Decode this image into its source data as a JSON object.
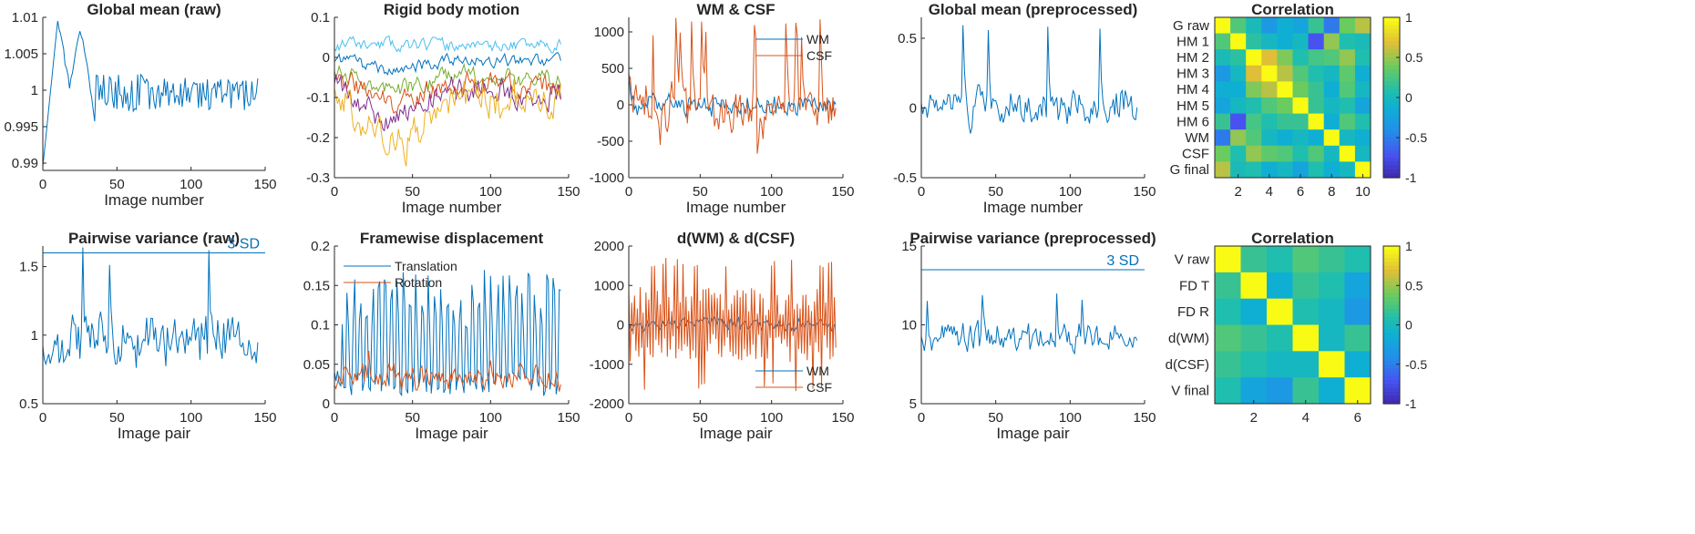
{
  "figure_title": "",
  "colors": {
    "blue": "#0072BD",
    "orange": "#D95319",
    "yellow": "#EDB120",
    "purple": "#7E2F8E",
    "green": "#77AC30",
    "cyan": "#4DBEEE",
    "axis": "#262626"
  },
  "chart_data": [
    {
      "id": "p1",
      "type": "line",
      "title": "Global mean (raw)",
      "xlabel": "Image number",
      "xlim": [
        0,
        150
      ],
      "ylim": [
        0.989,
        1.01
      ],
      "xticks": [
        0,
        50,
        100,
        150
      ],
      "xtick_labels": [
        "0",
        "50",
        "100",
        "150"
      ],
      "yticks": [
        0.99,
        0.995,
        1,
        1.005,
        1.01
      ],
      "ytick_labels": [
        "0.99",
        "0.995",
        "1",
        "1.005",
        "1.01"
      ],
      "series": [
        {
          "name": "G raw",
          "color": "blue",
          "gen": {
            "kind": "gmraw"
          }
        }
      ]
    },
    {
      "id": "p2",
      "type": "line",
      "title": "Rigid body motion",
      "xlabel": "Image number",
      "xlim": [
        0,
        150
      ],
      "ylim": [
        -0.3,
        0.1
      ],
      "xticks": [
        0,
        50,
        100,
        150
      ],
      "xtick_labels": [
        "0",
        "50",
        "100",
        "150"
      ],
      "yticks": [
        -0.3,
        -0.2,
        -0.1,
        0,
        0.1
      ],
      "ytick_labels": [
        "-0.3",
        "-0.2",
        "-0.1",
        "0",
        "0.1"
      ],
      "series": [
        {
          "name": "HM 1",
          "color": "cyan",
          "gen": {
            "kind": "drift",
            "seed": 11,
            "start": 0.03,
            "end": 0.03,
            "dip": 0.0,
            "amp": 0.012
          }
        },
        {
          "name": "HM 2",
          "color": "blue",
          "gen": {
            "kind": "drift",
            "seed": 12,
            "start": 0.0,
            "end": -0.01,
            "dip": -0.03,
            "amp": 0.012
          }
        },
        {
          "name": "HM 3",
          "color": "green",
          "gen": {
            "kind": "drift",
            "seed": 13,
            "start": -0.02,
            "end": -0.06,
            "dip": -0.05,
            "amp": 0.018
          }
        },
        {
          "name": "HM 4",
          "color": "orange",
          "gen": {
            "kind": "drift",
            "seed": 14,
            "start": -0.04,
            "end": -0.08,
            "dip": -0.06,
            "amp": 0.022
          }
        },
        {
          "name": "HM 5",
          "color": "purple",
          "gen": {
            "kind": "drift",
            "seed": 15,
            "start": -0.05,
            "end": -0.09,
            "dip": -0.1,
            "amp": 0.026
          }
        },
        {
          "name": "HM 6",
          "color": "yellow",
          "gen": {
            "kind": "drift",
            "seed": 16,
            "start": -0.06,
            "end": -0.12,
            "dip": -0.15,
            "amp": 0.038
          }
        }
      ]
    },
    {
      "id": "p3",
      "type": "line",
      "title": "WM & CSF",
      "xlabel": "Image number",
      "xlim": [
        0,
        150
      ],
      "ylim": [
        -1000,
        1200
      ],
      "xticks": [
        0,
        50,
        100,
        150
      ],
      "xtick_labels": [
        "0",
        "50",
        "100",
        "150"
      ],
      "yticks": [
        -1000,
        -500,
        0,
        500,
        1000
      ],
      "ytick_labels": [
        "-1000",
        "-500",
        "0",
        "500",
        "1000"
      ],
      "legend": {
        "position": "top-right",
        "entries": [
          "WM",
          "CSF"
        ]
      },
      "series": [
        {
          "name": "WM",
          "color": "blue",
          "gen": {
            "kind": "noise",
            "seed": 21,
            "mean": 0,
            "amp": 180,
            "spike": 0.0,
            "clipLo": -450,
            "clipHi": 450,
            "startval": 450
          }
        },
        {
          "name": "CSF",
          "color": "orange",
          "gen": {
            "kind": "noise",
            "seed": 22,
            "mean": -50,
            "amp": 420,
            "spike": 0.08,
            "spikeAmp": 1250,
            "clipLo": -700,
            "clipHi": 1250
          }
        }
      ]
    },
    {
      "id": "p4",
      "type": "line",
      "title": "Global mean (preprocessed)",
      "xlabel": "Image number",
      "xlim": [
        0,
        150
      ],
      "ylim": [
        -0.5,
        0.65
      ],
      "xticks": [
        0,
        50,
        100,
        150
      ],
      "xtick_labels": [
        "0",
        "50",
        "100",
        "150"
      ],
      "yticks": [
        -0.5,
        0,
        0.5
      ],
      "ytick_labels": [
        "-0.5",
        "0",
        "0.5"
      ],
      "series": [
        {
          "name": "G final",
          "color": "blue",
          "gen": {
            "kind": "noise",
            "seed": 31,
            "mean": 0,
            "amp": 0.16,
            "spike": 0.03,
            "spikeAmp": 0.6,
            "clipLo": -0.38,
            "clipHi": 0.62
          }
        }
      ]
    },
    {
      "id": "p5",
      "type": "heatmap",
      "title": "Correlation",
      "row_labels": [
        "G raw",
        "HM 1",
        "HM 2",
        "HM 3",
        "HM 4",
        "HM 5",
        "HM 6",
        "WM",
        "CSF",
        "G final"
      ],
      "xtick_values": [
        2,
        4,
        6,
        8,
        10
      ],
      "xtick_labels": [
        "2",
        "4",
        "6",
        "8",
        "10"
      ],
      "clim": [
        -1,
        1
      ],
      "colorbar_ticks": [
        1,
        0.5,
        0,
        -0.5,
        -1
      ],
      "colorbar_labels": [
        "1",
        "0.5",
        "0",
        "-0.5",
        "-1"
      ],
      "matrix": [
        [
          1,
          0.3,
          0.05,
          -0.3,
          -0.1,
          -0.2,
          0.2,
          -0.5,
          0.4,
          0.6
        ],
        [
          0.3,
          1,
          0.15,
          0.0,
          -0.1,
          0.0,
          -0.7,
          0.5,
          0.1,
          0.05
        ],
        [
          0.05,
          0.15,
          1,
          0.7,
          0.45,
          0.1,
          0.25,
          0.3,
          0.5,
          0.1
        ],
        [
          -0.3,
          0.0,
          0.7,
          1,
          0.6,
          0.3,
          0.1,
          0.0,
          0.35,
          -0.1
        ],
        [
          -0.1,
          -0.1,
          0.45,
          0.6,
          1,
          0.4,
          0.2,
          -0.1,
          0.3,
          0.0
        ],
        [
          -0.2,
          0.0,
          0.1,
          0.3,
          0.4,
          1,
          0.2,
          0.0,
          0.1,
          -0.2
        ],
        [
          0.2,
          -0.7,
          0.25,
          0.1,
          0.2,
          0.2,
          1,
          -0.1,
          0.3,
          0.1
        ],
        [
          -0.5,
          0.5,
          0.3,
          0.0,
          -0.1,
          0.0,
          -0.1,
          1,
          0.0,
          -0.1
        ],
        [
          0.4,
          0.1,
          0.5,
          0.35,
          0.3,
          0.1,
          0.3,
          0.0,
          1,
          0.0
        ],
        [
          0.6,
          0.05,
          0.1,
          -0.1,
          0.0,
          -0.2,
          0.1,
          -0.1,
          0.0,
          1
        ]
      ]
    },
    {
      "id": "p6",
      "type": "line",
      "title": "Pairwise variance (raw)",
      "xlabel": "Image pair",
      "xlim": [
        0,
        150
      ],
      "ylim": [
        0.5,
        1.65
      ],
      "xticks": [
        0,
        50,
        100,
        150
      ],
      "xtick_labels": [
        "0",
        "50",
        "100",
        "150"
      ],
      "yticks": [
        0.5,
        1,
        1.5
      ],
      "ytick_labels": [
        "0.5",
        "1",
        "1.5"
      ],
      "hline": {
        "value": 1.6,
        "label": "3 SD"
      },
      "series": [
        {
          "name": "V raw",
          "color": "blue",
          "gen": {
            "kind": "noise",
            "seed": 41,
            "mean": 0.95,
            "amp": 0.22,
            "spike": 0.03,
            "spikeAmp": 0.7,
            "clipLo": 0.52,
            "clipHi": 1.64,
            "fixed": {
              "27": 1.64,
              "112": 1.62
            }
          }
        }
      ]
    },
    {
      "id": "p7",
      "type": "line",
      "title": "Framewise displacement",
      "xlabel": "Image pair",
      "xlim": [
        0,
        150
      ],
      "ylim": [
        0,
        0.2
      ],
      "xticks": [
        0,
        50,
        100,
        150
      ],
      "xtick_labels": [
        "0",
        "50",
        "100",
        "150"
      ],
      "yticks": [
        0,
        0.05,
        0.1,
        0.15,
        0.2
      ],
      "ytick_labels": [
        "0",
        "0.05",
        "0.1",
        "0.15",
        "0.2"
      ],
      "legend": {
        "position": "top-left",
        "entries": [
          "Translation",
          "Rotation"
        ]
      },
      "series": [
        {
          "name": "Translation",
          "color": "blue",
          "gen": {
            "kind": "osc",
            "seed": 51,
            "lo": 0.01,
            "hi": 0.17
          }
        },
        {
          "name": "Rotation",
          "color": "orange",
          "gen": {
            "kind": "noise",
            "seed": 52,
            "mean": 0.035,
            "amp": 0.02,
            "spike": 0.02,
            "spikeAmp": 0.04,
            "clipLo": 0.003,
            "clipHi": 0.09
          }
        }
      ]
    },
    {
      "id": "p8",
      "type": "line",
      "title": "d(WM) & d(CSF)",
      "xlabel": "Image pair",
      "xlim": [
        0,
        150
      ],
      "ylim": [
        -2000,
        2000
      ],
      "xticks": [
        0,
        50,
        100,
        150
      ],
      "xtick_labels": [
        "0",
        "50",
        "100",
        "150"
      ],
      "yticks": [
        -2000,
        -1000,
        0,
        1000,
        2000
      ],
      "ytick_labels": [
        "-2000",
        "-1000",
        "0",
        "1000",
        "2000"
      ],
      "legend": {
        "position": "bottom-right",
        "entries": [
          "WM",
          "CSF"
        ]
      },
      "series": [
        {
          "name": "WM",
          "color": "blue",
          "gen": {
            "kind": "noise",
            "seed": 61,
            "mean": 0,
            "amp": 220,
            "spike": 0.0,
            "clipLo": -500,
            "clipHi": 500
          }
        },
        {
          "name": "CSF",
          "color": "orange",
          "gen": {
            "kind": "alt",
            "seed": 62,
            "amp": 800,
            "clipLo": -1700,
            "clipHi": 1700
          }
        }
      ]
    },
    {
      "id": "p9",
      "type": "line",
      "title": "Pairwise variance (preprocessed)",
      "xlabel": "Image pair",
      "xlim": [
        0,
        150
      ],
      "ylim": [
        5,
        15
      ],
      "xticks": [
        0,
        50,
        100,
        150
      ],
      "xtick_labels": [
        "0",
        "50",
        "100",
        "150"
      ],
      "yticks": [
        5,
        10,
        15
      ],
      "ytick_labels": [
        "5",
        "10",
        "15"
      ],
      "hline": {
        "value": 13.5,
        "label": "3 SD"
      },
      "series": [
        {
          "name": "V final",
          "color": "blue",
          "gen": {
            "kind": "noise",
            "seed": 71,
            "mean": 9.2,
            "amp": 1.2,
            "spike": 0.04,
            "spikeAmp": 3.0,
            "clipLo": 5.1,
            "clipHi": 13.2
          }
        }
      ]
    },
    {
      "id": "p10",
      "type": "heatmap",
      "title": "Correlation",
      "row_labels": [
        "V raw",
        "FD T",
        "FD R",
        "d(WM)",
        "d(CSF)",
        "V final"
      ],
      "xtick_values": [
        2,
        4,
        6
      ],
      "xtick_labels": [
        "2",
        "4",
        "6"
      ],
      "clim": [
        -1,
        1
      ],
      "colorbar_ticks": [
        1,
        0.5,
        0,
        -0.5,
        -1
      ],
      "colorbar_labels": [
        "1",
        "0.5",
        "0",
        "-0.5",
        "-1"
      ],
      "matrix": [
        [
          1,
          0.2,
          0.1,
          0.3,
          0.2,
          0.1
        ],
        [
          0.2,
          1,
          -0.1,
          0.2,
          0.1,
          -0.2
        ],
        [
          0.1,
          -0.1,
          1,
          0.1,
          0.0,
          -0.3
        ],
        [
          0.3,
          0.2,
          0.1,
          1,
          0.0,
          0.2
        ],
        [
          0.2,
          0.1,
          0.0,
          0.0,
          1,
          -0.1
        ],
        [
          0.1,
          -0.2,
          -0.3,
          0.2,
          -0.1,
          1
        ]
      ]
    }
  ]
}
